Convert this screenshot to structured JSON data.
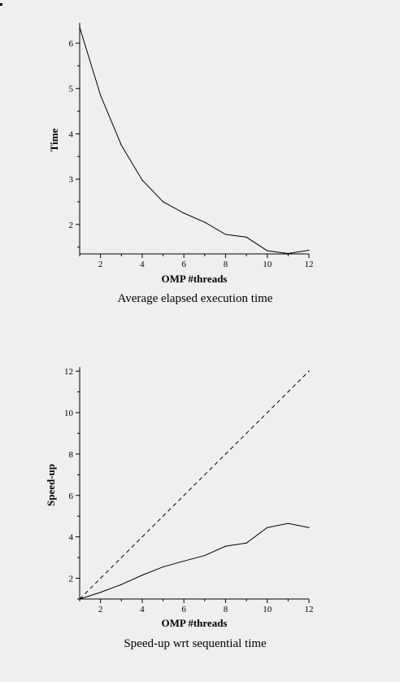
{
  "chart_data": [
    {
      "type": "line",
      "caption": "Average elapsed execution time",
      "xlabel": "OMP #threads",
      "ylabel": "Time",
      "xlim": [
        1,
        12
      ],
      "ylim": [
        1.35,
        6.45
      ],
      "xticks": [
        2,
        4,
        6,
        8,
        10,
        12
      ],
      "yticks": [
        2,
        3,
        4,
        5,
        6
      ],
      "x": [
        1,
        2,
        3,
        4,
        5,
        6,
        7,
        8,
        9,
        10,
        11,
        12
      ],
      "series": [
        {
          "values": [
            6.35,
            4.85,
            3.75,
            2.98,
            2.5,
            2.25,
            2.05,
            1.78,
            1.72,
            1.42,
            1.36,
            1.43
          ],
          "style": "solid"
        }
      ],
      "grid": false
    },
    {
      "type": "line",
      "caption": "Speed-up wrt sequential time",
      "xlabel": "OMP #threads",
      "ylabel": "Speed-up",
      "xlim": [
        1,
        12
      ],
      "ylim": [
        1,
        12.2
      ],
      "xticks": [
        2,
        4,
        6,
        8,
        10,
        12
      ],
      "yticks": [
        2,
        4,
        6,
        8,
        10,
        12
      ],
      "x": [
        1,
        2,
        3,
        4,
        5,
        6,
        7,
        8,
        9,
        10,
        11,
        12
      ],
      "series": [
        {
          "values": [
            1,
            1.32,
            1.7,
            2.15,
            2.55,
            2.83,
            3.1,
            3.55,
            3.7,
            4.45,
            4.65,
            4.45
          ],
          "style": "solid"
        },
        {
          "values": [
            1,
            2,
            3,
            4,
            5,
            6,
            7,
            8,
            9,
            10,
            11,
            12
          ],
          "style": "dashed"
        }
      ],
      "grid": false
    }
  ]
}
